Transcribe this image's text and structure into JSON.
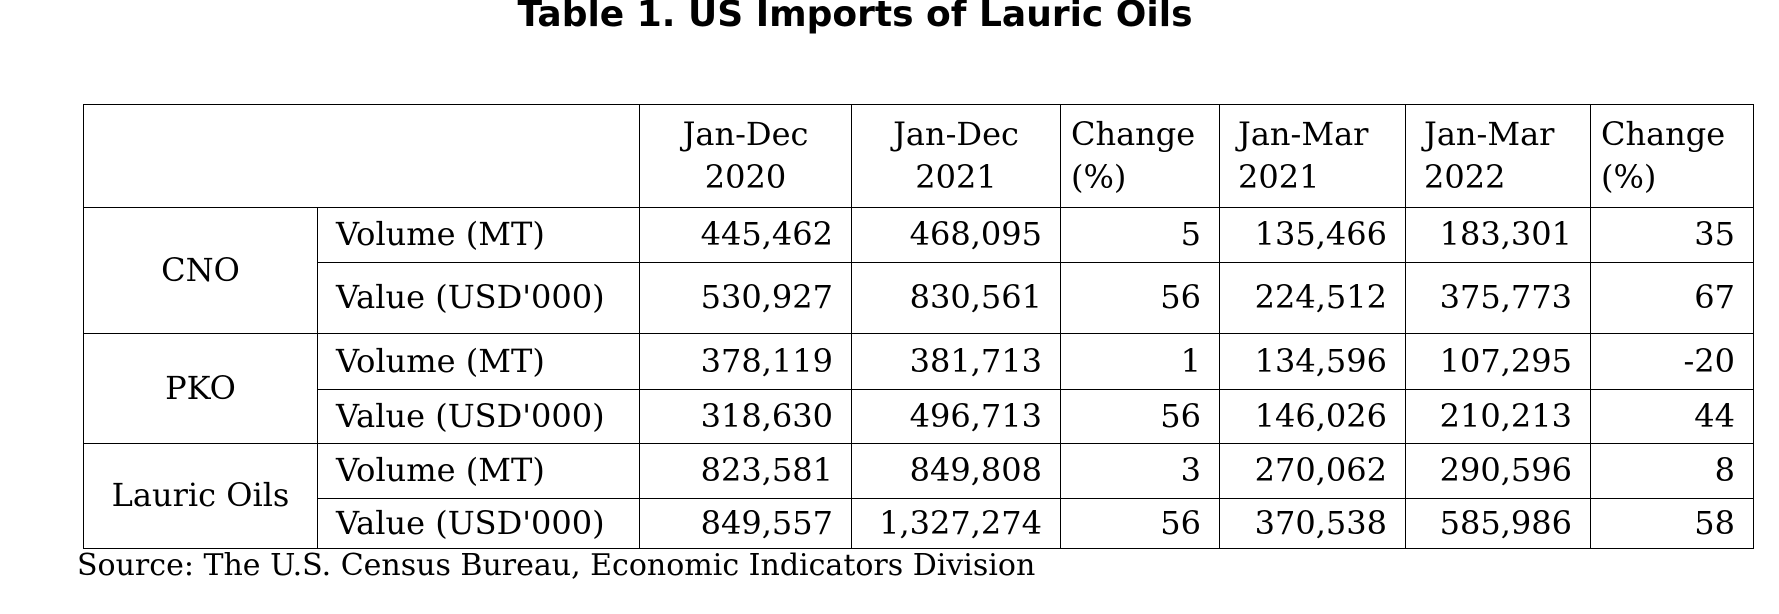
{
  "title": "Table 1. US Imports of Lauric Oils",
  "table": {
    "header": [
      [
        "Jan-Dec",
        "2020"
      ],
      [
        "Jan-Dec",
        "2021"
      ],
      [
        "Change",
        "(%)"
      ],
      [
        "Jan-Mar",
        "2021"
      ],
      [
        "Jan-Mar",
        "2022"
      ],
      [
        "Change",
        "(%)"
      ]
    ],
    "groups": [
      {
        "label": "CNO",
        "rows": [
          {
            "metric": "Volume (MT)",
            "values": [
              "445,462",
              "468,095",
              "5",
              "135,466",
              "183,301",
              "35"
            ]
          },
          {
            "metric": "Value (USD'000)",
            "values": [
              "530,927",
              "830,561",
              "56",
              "224,512",
              "375,773",
              "67"
            ]
          }
        ]
      },
      {
        "label": "PKO",
        "rows": [
          {
            "metric": "Volume (MT)",
            "values": [
              "378,119",
              "381,713",
              "1",
              "134,596",
              "107,295",
              "-20"
            ]
          },
          {
            "metric": "Value (USD'000)",
            "values": [
              "318,630",
              "496,713",
              "56",
              "146,026",
              "210,213",
              "44"
            ]
          }
        ]
      },
      {
        "label": "Lauric Oils",
        "rows": [
          {
            "metric": "Volume (MT)",
            "values": [
              "823,581",
              "849,808",
              "3",
              "270,062",
              "290,596",
              "8"
            ]
          },
          {
            "metric": "Value (USD'000)",
            "values": [
              "849,557",
              "1,327,274",
              "56",
              "370,538",
              "585,986",
              "58"
            ]
          }
        ]
      }
    ]
  },
  "source": "Source: The U.S. Census Bureau, Economic Indicators Division"
}
